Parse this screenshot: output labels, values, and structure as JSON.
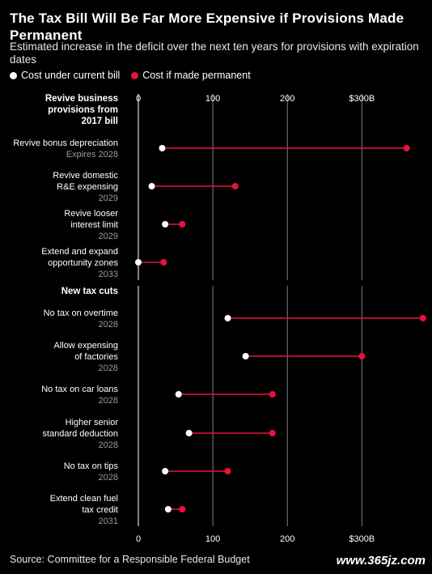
{
  "title": "The Tax Bill Will Be Far More Expensive if Provisions Made Permanent",
  "subtitle": "Estimated increase in the deficit over the next ten years for provisions with expiration dates",
  "legend": {
    "current": "Cost under current bill",
    "permanent": "Cost if made permanent"
  },
  "source": "Source: Committee for a Responsible Federal Budget",
  "watermark": "www.365jz.com",
  "colors": {
    "current": "#ffffff",
    "permanent": "#e8123c",
    "background": "#000000",
    "grid": "#808080"
  },
  "chart_data": {
    "type": "dot-range",
    "xlim": [
      0,
      380
    ],
    "x_ticks": [
      0,
      100,
      200,
      300
    ],
    "x_tick_labels": [
      "0",
      "100",
      "200",
      "$300B"
    ],
    "sections": [
      {
        "title": "Revive business provisions from 2017 bill",
        "title_lines": [
          "Revive business",
          "provisions from",
          "2017 bill"
        ],
        "rows": [
          {
            "label_lines": [
              "Revive bonus depreciation"
            ],
            "sub": "Expires 2028",
            "current": 32,
            "permanent": 360
          },
          {
            "label_lines": [
              "Revive domestic",
              "R&E expensing"
            ],
            "sub": "2029",
            "current": 18,
            "permanent": 130
          },
          {
            "label_lines": [
              "Revive looser",
              "interest limit"
            ],
            "sub": "2029",
            "current": 36,
            "permanent": 59
          },
          {
            "label_lines": [
              "Extend and expand",
              "opportunity zones"
            ],
            "sub": "2033",
            "current": 0,
            "permanent": 34
          }
        ]
      },
      {
        "title": "New tax cuts",
        "title_lines": [
          "New tax cuts"
        ],
        "rows": [
          {
            "label_lines": [
              "No tax on overtime"
            ],
            "sub": "2028",
            "current": 120,
            "permanent": 382
          },
          {
            "label_lines": [
              "Allow expensing",
              "of factories"
            ],
            "sub": "2028",
            "current": 144,
            "permanent": 300
          },
          {
            "label_lines": [
              "No tax on car loans"
            ],
            "sub": "2028",
            "current": 54,
            "permanent": 180
          },
          {
            "label_lines": [
              "Higher senior",
              "standard deduction"
            ],
            "sub": "2028",
            "current": 68,
            "permanent": 180
          },
          {
            "label_lines": [
              "No tax on tips"
            ],
            "sub": "2028",
            "current": 36,
            "permanent": 120
          },
          {
            "label_lines": [
              "Extend clean fuel",
              "tax credit"
            ],
            "sub": "2031",
            "current": 40,
            "permanent": 59
          }
        ]
      }
    ]
  }
}
